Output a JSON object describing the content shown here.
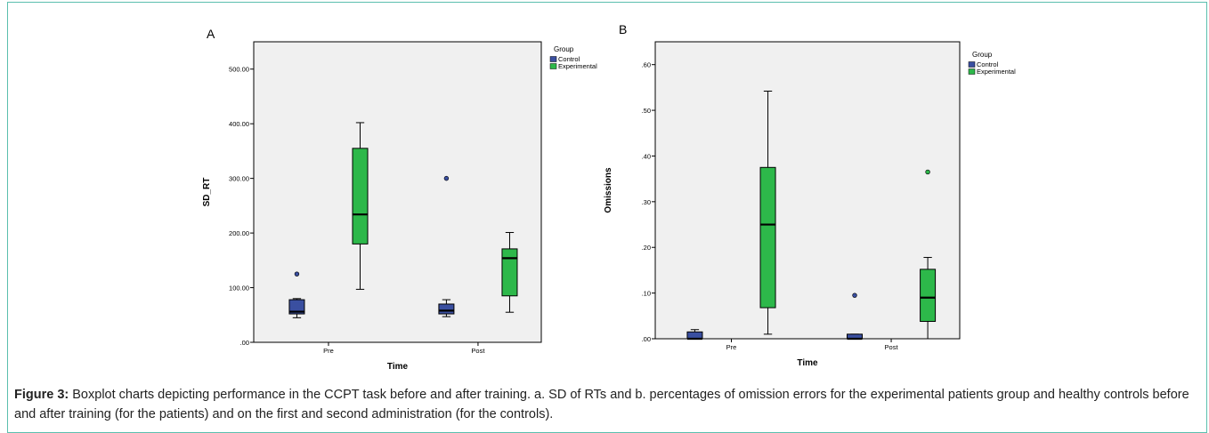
{
  "colors": {
    "control": "#3a4fa0",
    "experimental": "#2db84a",
    "plot_bg": "#f0f0f0",
    "border": "#5bbfae"
  },
  "chart_data": [
    {
      "panel_label": "A",
      "type": "boxplot",
      "xlabel": "Time",
      "ylabel": "SD_RT",
      "ylim": [
        0,
        550
      ],
      "yticks": [
        0,
        100,
        200,
        300,
        400,
        500
      ],
      "ytick_labels": [
        ".00",
        "100.00",
        "200.00",
        "300.00",
        "400.00",
        "500.00"
      ],
      "categories": [
        "Pre",
        "Post"
      ],
      "legend": {
        "title": "Group",
        "entries": [
          "Control",
          "Experimental"
        ],
        "position": "right"
      },
      "series": [
        {
          "name": "Control",
          "color": "#3a4fa0",
          "boxes": [
            {
              "min": 45,
              "q1": 52,
              "median": 56,
              "q3": 78,
              "max": 80,
              "outliers": [
                125
              ]
            },
            {
              "min": 47,
              "q1": 52,
              "median": 58,
              "q3": 70,
              "max": 78,
              "outliers": [
                300
              ]
            }
          ]
        },
        {
          "name": "Experimental",
          "color": "#2db84a",
          "boxes": [
            {
              "min": 97,
              "q1": 180,
              "median": 234,
              "q3": 355,
              "max": 402,
              "outliers": []
            },
            {
              "min": 55,
              "q1": 85,
              "median": 154,
              "q3": 171,
              "max": 201,
              "outliers": []
            }
          ]
        }
      ]
    },
    {
      "panel_label": "B",
      "type": "boxplot",
      "xlabel": "Time",
      "ylabel": "Omissions",
      "ylim": [
        0,
        0.65
      ],
      "yticks": [
        0,
        0.1,
        0.2,
        0.3,
        0.4,
        0.5,
        0.6
      ],
      "ytick_labels": [
        ".00",
        ".10",
        ".20",
        ".30",
        ".40",
        ".50",
        ".60"
      ],
      "categories": [
        "Pre",
        "Post"
      ],
      "legend": {
        "title": "Group",
        "entries": [
          "Control",
          "Experimental"
        ],
        "position": "right"
      },
      "series": [
        {
          "name": "Control",
          "color": "#3a4fa0",
          "boxes": [
            {
              "min": 0,
              "q1": 0,
              "median": 0,
              "q3": 0.015,
              "max": 0.02,
              "outliers": []
            },
            {
              "min": 0,
              "q1": 0,
              "median": 0,
              "q3": 0.01,
              "max": 0.01,
              "outliers": [
                0.095
              ]
            }
          ]
        },
        {
          "name": "Experimental",
          "color": "#2db84a",
          "boxes": [
            {
              "min": 0.01,
              "q1": 0.068,
              "median": 0.25,
              "q3": 0.375,
              "max": 0.542,
              "outliers": []
            },
            {
              "min": 0,
              "q1": 0.038,
              "median": 0.09,
              "q3": 0.152,
              "max": 0.178,
              "outliers": [
                0.365
              ]
            }
          ]
        }
      ]
    }
  ],
  "caption": {
    "label": "Figure 3:",
    "text": " Boxplot charts depicting performance in the CCPT task before and after training. a. SD of RTs  and b. percentages of omission errors for the experimental patients group and healthy controls before and after training (for the patients) and on the first and second administration (for the controls)."
  }
}
